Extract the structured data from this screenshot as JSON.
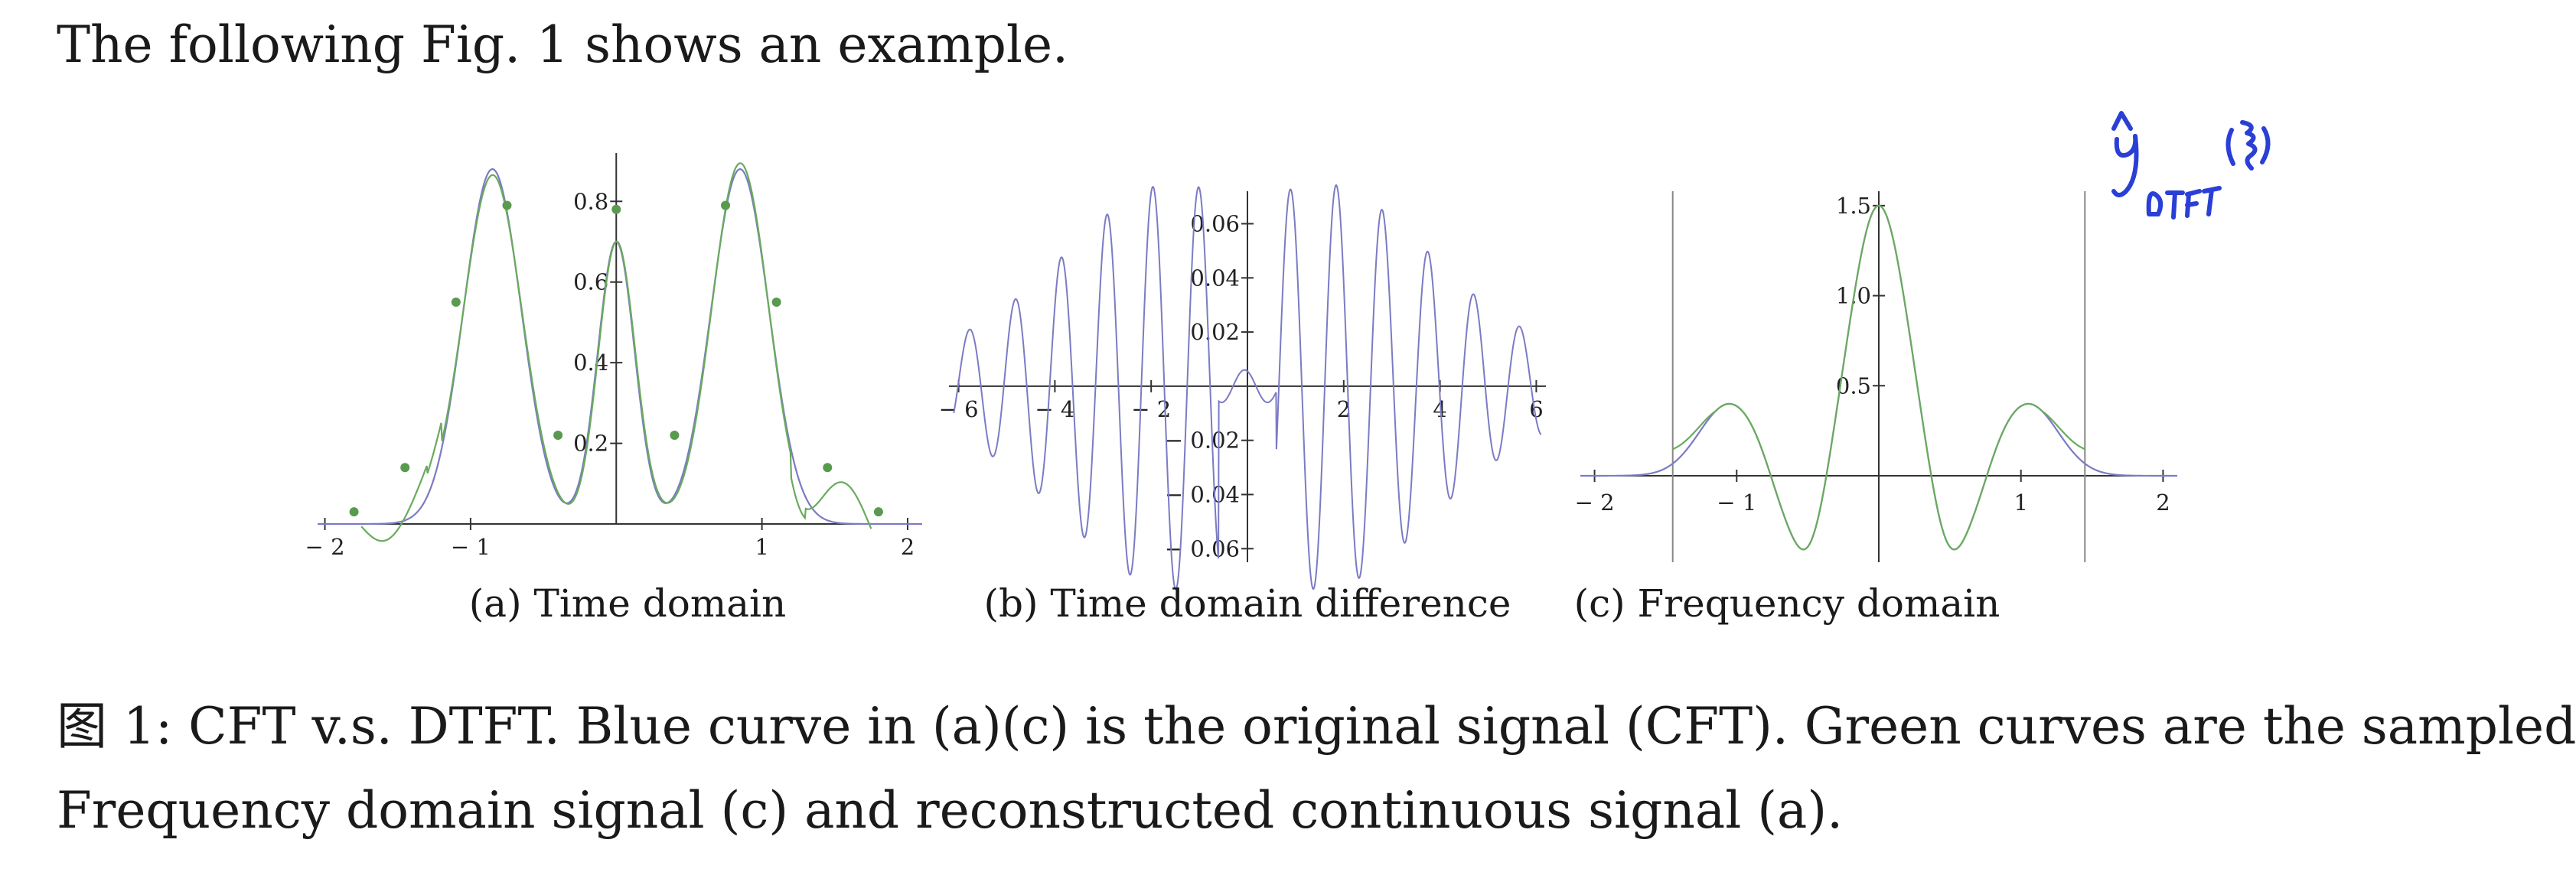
{
  "intro_text": "The following Fig. 1 shows an example.",
  "handwritten_note": "ŷ DTFT(ξ)",
  "chart_data": [
    {
      "type": "line",
      "subcaption": "(a) Time domain",
      "xlim": [
        -2.05,
        2.1
      ],
      "ylim": [
        0,
        0.92
      ],
      "x_ticks": [
        -2,
        -1,
        1,
        2
      ],
      "x_tick_labels": [
        "− 2",
        "− 1",
        "1",
        "2"
      ],
      "y_ticks": [
        0.2,
        0.4,
        0.6,
        0.8
      ],
      "y_tick_labels": [
        "0.2",
        "0.4",
        "0.6",
        "0.8"
      ],
      "series": [
        {
          "color": "#7b7bc4"
        },
        {
          "color": "#6aaa5e"
        }
      ],
      "sample_points": {
        "color": "#5a9a50",
        "x": [
          -1.8,
          -1.45,
          -1.1,
          -0.75,
          -0.4,
          0,
          0.4,
          0.75,
          1.1,
          1.45,
          1.8
        ],
        "y": [
          0.03,
          0.14,
          0.55,
          0.79,
          0.22,
          0.78,
          0.22,
          0.79,
          0.55,
          0.14,
          0.03
        ]
      }
    },
    {
      "type": "line",
      "subcaption": "(b) Time domain difference",
      "xlim": [
        -6.2,
        6.2
      ],
      "ylim": [
        -0.065,
        0.072
      ],
      "x_ticks": [
        -6,
        -4,
        -2,
        2,
        4,
        6
      ],
      "x_tick_labels": [
        "− 6",
        "− 4",
        "− 2",
        "2",
        "4",
        "6"
      ],
      "y_ticks": [
        -0.06,
        -0.04,
        -0.02,
        0.02,
        0.04,
        0.06
      ],
      "y_tick_labels": [
        "− 0.06",
        "− 0.04",
        "− 0.02",
        "0.02",
        "0.04",
        "0.06"
      ],
      "series": [
        {
          "color": "#7b7bc4"
        }
      ]
    },
    {
      "type": "line",
      "subcaption": "(c) Frequency domain",
      "xlim": [
        -2.1,
        2.1
      ],
      "ylim": [
        -0.48,
        1.58
      ],
      "x_ticks": [
        -2,
        -1,
        1,
        2
      ],
      "x_tick_labels": [
        "− 2",
        "− 1",
        "1",
        "2"
      ],
      "y_ticks": [
        0.5,
        1.0,
        1.5
      ],
      "y_tick_labels": [
        "0.5",
        "1.0",
        "1.5"
      ],
      "vertical_lines_x": [
        -1.45,
        1.45
      ],
      "series": [
        {
          "color": "#7b7bc4"
        },
        {
          "color": "#6aaa5e"
        }
      ]
    }
  ],
  "caption": {
    "line1": "图 1: CFT v.s. DTFT. Blue curve in (a)(c) is the original signal (CFT). Green curves are the sampled",
    "line2": "Frequency domain signal (c) and reconstructed continuous signal (a)."
  }
}
